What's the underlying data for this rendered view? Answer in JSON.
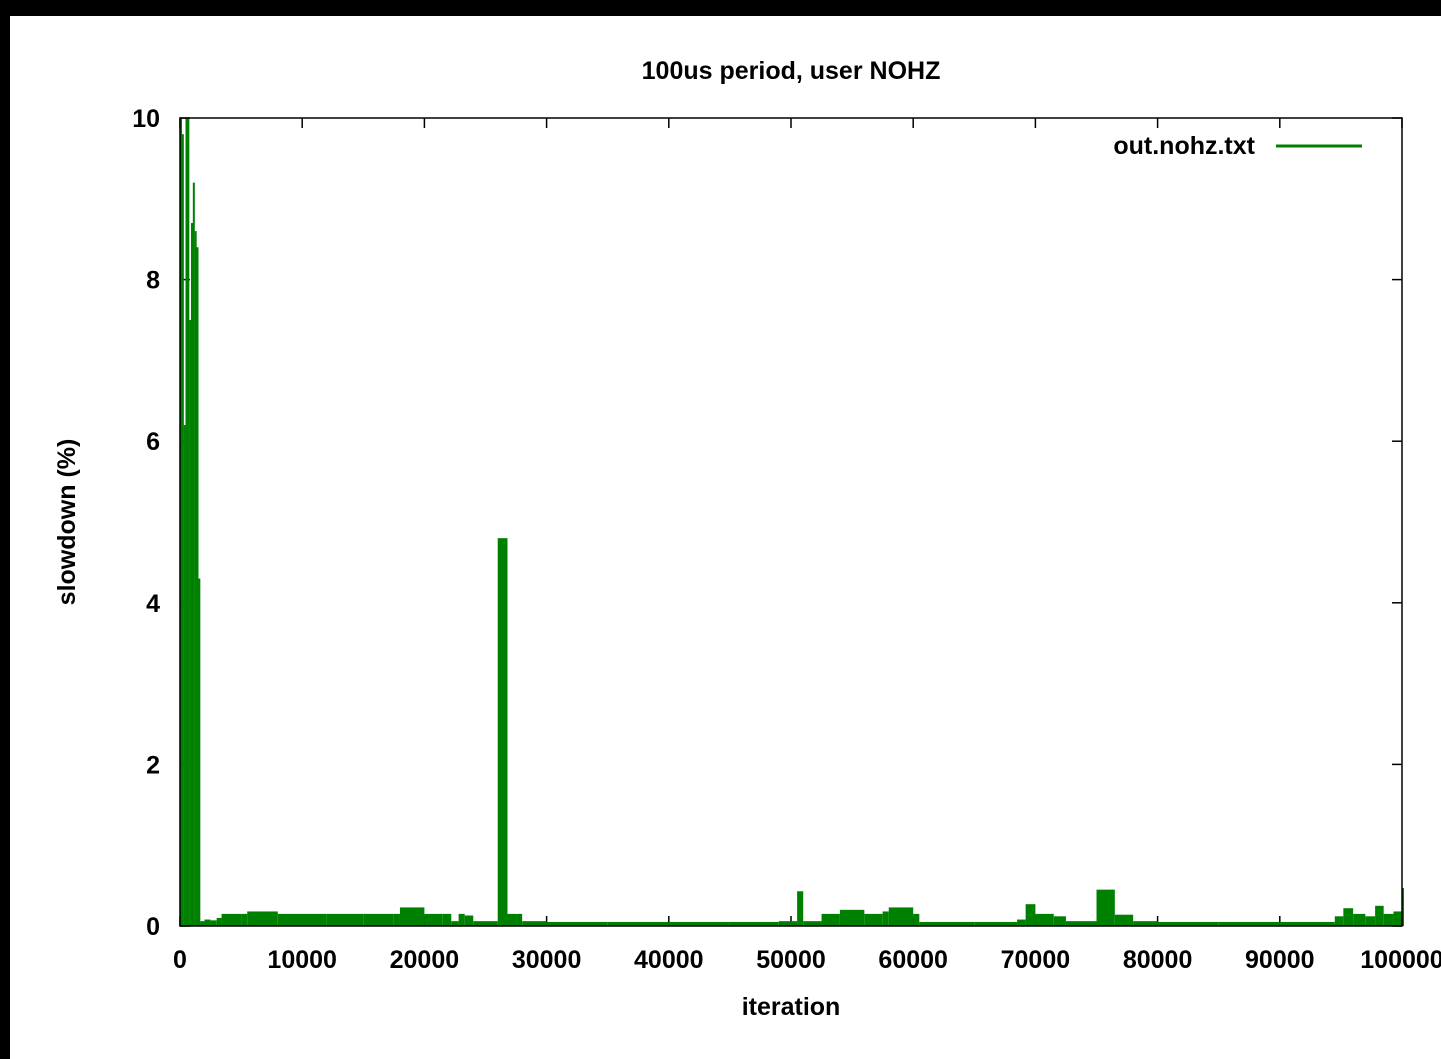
{
  "chart_data": {
    "type": "line",
    "title": "100us period, user NOHZ",
    "xlabel": "iteration",
    "ylabel": "slowdown (%)",
    "xlim": [
      0,
      100000
    ],
    "ylim": [
      0,
      10
    ],
    "x_ticks": [
      "0",
      "10000",
      "20000",
      "30000",
      "40000",
      "50000",
      "60000",
      "70000",
      "80000",
      "90000",
      "100000"
    ],
    "y_ticks": [
      "0",
      "2",
      "4",
      "6",
      "8",
      "10"
    ],
    "grid": false,
    "legend_position": "top-right",
    "series": [
      {
        "name": "out.nohz.txt",
        "color": "#008000",
        "style": "impulses",
        "points": [
          [
            0,
            10
          ],
          [
            150,
            9.8
          ],
          [
            300,
            6.2
          ],
          [
            450,
            10
          ],
          [
            600,
            10
          ],
          [
            750,
            7.5
          ],
          [
            900,
            8.7
          ],
          [
            1050,
            9.2
          ],
          [
            1200,
            8.6
          ],
          [
            1350,
            8.4
          ],
          [
            1500,
            4.3
          ],
          [
            1650,
            0.06
          ],
          [
            2000,
            0.08
          ],
          [
            2500,
            0.07
          ],
          [
            3000,
            0.1
          ],
          [
            3400,
            0.15
          ],
          [
            5000,
            0.15
          ],
          [
            5500,
            0.18
          ],
          [
            8000,
            0.15
          ],
          [
            12000,
            0.15
          ],
          [
            15000,
            0.15
          ],
          [
            17500,
            0.15
          ],
          [
            18000,
            0.23
          ],
          [
            20000,
            0.15
          ],
          [
            21500,
            0.15
          ],
          [
            22200,
            0.06
          ],
          [
            22800,
            0.15
          ],
          [
            23300,
            0.13
          ],
          [
            24000,
            0.06
          ],
          [
            26000,
            4.8
          ],
          [
            26800,
            0.15
          ],
          [
            27500,
            0.15
          ],
          [
            28000,
            0.06
          ],
          [
            30000,
            0.05
          ],
          [
            35000,
            0.05
          ],
          [
            40000,
            0.05
          ],
          [
            45000,
            0.05
          ],
          [
            49000,
            0.06
          ],
          [
            50500,
            0.43
          ],
          [
            51000,
            0.06
          ],
          [
            52500,
            0.15
          ],
          [
            54000,
            0.2
          ],
          [
            56000,
            0.15
          ],
          [
            57500,
            0.18
          ],
          [
            58000,
            0.23
          ],
          [
            60000,
            0.15
          ],
          [
            60500,
            0.05
          ],
          [
            65000,
            0.05
          ],
          [
            68500,
            0.08
          ],
          [
            69200,
            0.27
          ],
          [
            70000,
            0.15
          ],
          [
            71500,
            0.12
          ],
          [
            72500,
            0.06
          ],
          [
            75000,
            0.45
          ],
          [
            76500,
            0.14
          ],
          [
            78000,
            0.06
          ],
          [
            80000,
            0.05
          ],
          [
            85000,
            0.05
          ],
          [
            90000,
            0.05
          ],
          [
            94500,
            0.12
          ],
          [
            95200,
            0.22
          ],
          [
            96000,
            0.15
          ],
          [
            97000,
            0.12
          ],
          [
            97800,
            0.25
          ],
          [
            98500,
            0.15
          ],
          [
            99300,
            0.18
          ],
          [
            100000,
            0.47
          ]
        ]
      }
    ]
  }
}
